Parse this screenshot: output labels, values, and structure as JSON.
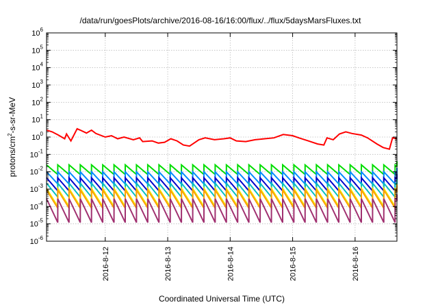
{
  "chart_data": {
    "type": "line",
    "title": "/data/run/goesPlots/archive/2016-08-16/16:00/flux/../flux/5daysMarsFluxes.txt",
    "xlabel": "Coordinated Universal Time (UTC)",
    "ylabel_parts": [
      "protons/cm",
      "2",
      "-s-sr-MeV"
    ],
    "x_ticks": [
      "2016-8-12",
      "2016-8-13",
      "2016-8-14",
      "2016-8-15",
      "2016-8-16"
    ],
    "x_tick_days": [
      12,
      13,
      14,
      15,
      16
    ],
    "xlim_days": [
      11.06,
      16.67
    ],
    "y_scale": "log",
    "ylim_exp": [
      -6,
      6
    ],
    "y_ticks": [
      {
        "base": "10",
        "exp": "-6"
      },
      {
        "base": "10",
        "exp": "-5"
      },
      {
        "base": "10",
        "exp": "-4"
      },
      {
        "base": "10",
        "exp": "-3"
      },
      {
        "base": "10",
        "exp": "-2"
      },
      {
        "base": "10",
        "exp": "-1"
      },
      {
        "base": "10",
        "exp": "0"
      },
      {
        "base": "10",
        "exp": "1"
      },
      {
        "base": "10",
        "exp": "2"
      },
      {
        "base": "10",
        "exp": "3"
      },
      {
        "base": "10",
        "exp": "4"
      },
      {
        "base": "10",
        "exp": "5"
      },
      {
        "base": "10",
        "exp": "6"
      }
    ],
    "grid": true,
    "series": [
      {
        "color": "#ff0000",
        "x": [
          11.06,
          11.15,
          11.25,
          11.35,
          11.38,
          11.45,
          11.55,
          11.6,
          11.7,
          11.78,
          11.85,
          12.0,
          12.1,
          12.2,
          12.3,
          12.45,
          12.55,
          12.6,
          12.75,
          12.85,
          12.95,
          13.05,
          13.15,
          13.25,
          13.35,
          13.5,
          13.6,
          13.75,
          13.9,
          14.0,
          14.1,
          14.25,
          14.4,
          14.55,
          14.7,
          14.85,
          15.0,
          15.1,
          15.25,
          15.4,
          15.5,
          15.55,
          15.65,
          15.75,
          15.85,
          15.95,
          16.1,
          16.2,
          16.35,
          16.45,
          16.55,
          16.6,
          16.67
        ],
        "y": [
          2.5,
          2.0,
          1.3,
          0.8,
          1.5,
          0.6,
          3.0,
          2.5,
          1.7,
          2.5,
          1.6,
          1.0,
          1.2,
          0.8,
          1.0,
          0.7,
          0.9,
          0.55,
          0.6,
          0.45,
          0.5,
          0.8,
          0.6,
          0.35,
          0.3,
          0.7,
          0.9,
          0.7,
          0.8,
          0.9,
          0.6,
          0.55,
          0.7,
          0.8,
          0.9,
          1.4,
          1.2,
          0.9,
          0.6,
          0.4,
          0.35,
          0.9,
          0.7,
          1.5,
          2.0,
          1.6,
          1.3,
          0.9,
          0.4,
          0.25,
          0.2,
          0.9,
          0.8
        ]
      },
      {
        "color": "#00dd00",
        "sawtooth": {
          "peak": 0.025,
          "trough": 0.007,
          "period_days": 0.18
        }
      },
      {
        "color": "#008cff",
        "sawtooth": {
          "peak": 0.01,
          "trough": 0.002,
          "period_days": 0.18
        }
      },
      {
        "color": "#0000cc",
        "sawtooth": {
          "peak": 0.0045,
          "trough": 0.0008,
          "period_days": 0.18
        }
      },
      {
        "color": "#00c0c0",
        "sawtooth": {
          "peak": 0.0022,
          "trough": 0.00035,
          "period_days": 0.18
        }
      },
      {
        "color": "#f0f000",
        "sawtooth": {
          "peak": 0.0011,
          "trough": 0.0001,
          "period_days": 0.18
        }
      },
      {
        "color": "#ffa000",
        "sawtooth": {
          "peak": 0.0009,
          "trough": 8e-05,
          "period_days": 0.18
        }
      },
      {
        "color": "#a03070",
        "sawtooth": {
          "peak": 0.00028,
          "trough": 1.2e-05,
          "period_days": 0.18
        }
      }
    ]
  }
}
